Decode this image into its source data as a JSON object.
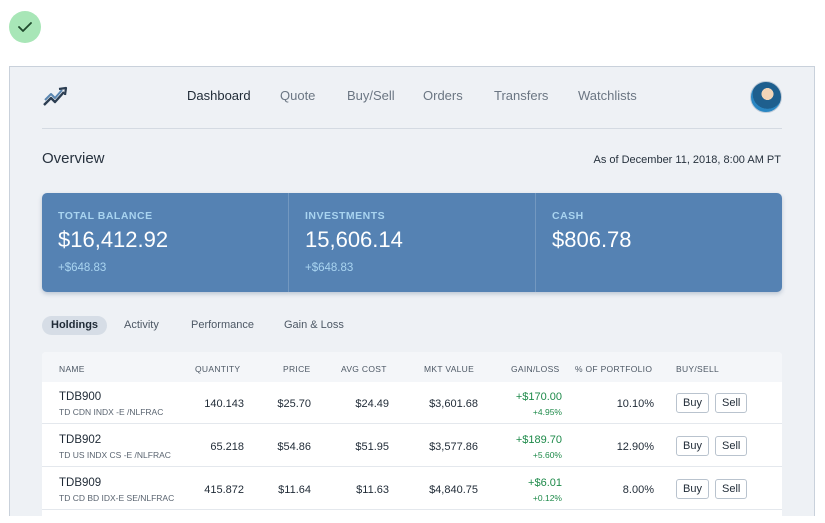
{
  "nav": {
    "items": [
      {
        "label": "Dashboard",
        "active": true
      },
      {
        "label": "Quote",
        "active": false
      },
      {
        "label": "Buy/Sell",
        "active": false
      },
      {
        "label": "Orders",
        "active": false
      },
      {
        "label": "Transfers",
        "active": false
      },
      {
        "label": "Watchlists",
        "active": false
      }
    ]
  },
  "overview": {
    "title": "Overview",
    "as_of": "As of December 11, 2018, 8:00 AM PT"
  },
  "balances": [
    {
      "label": "TOTAL BALANCE",
      "value": "$16,412.92",
      "change": "+$648.83"
    },
    {
      "label": "INVESTMENTS",
      "value": "15,606.14",
      "change": "+$648.83"
    },
    {
      "label": "CASH",
      "value": "$806.78",
      "change": ""
    }
  ],
  "tabs": [
    {
      "label": "Holdings",
      "active": true
    },
    {
      "label": "Activity",
      "active": false
    },
    {
      "label": "Performance",
      "active": false
    },
    {
      "label": "Gain & Loss",
      "active": false
    }
  ],
  "table": {
    "headers": [
      "NAME",
      "QUANTITY",
      "PRICE",
      "AVG COST",
      "MKT VALUE",
      "GAIN/LOSS",
      "% OF PORTFOLIO",
      "BUY/SELL"
    ],
    "buy_label": "Buy",
    "sell_label": "Sell",
    "rows": [
      {
        "symbol": "TDB900",
        "description": "TD CDN INDX -E /NLFRAC",
        "quantity": "140.143",
        "price": "$25.70",
        "avg_cost": "$24.49",
        "mkt_value": "$3,601.68",
        "gain": "+$170.00",
        "gain_pct": "+4.95%",
        "portfolio_pct": "10.10%"
      },
      {
        "symbol": "TDB902",
        "description": "TD US INDX CS -E /NLFRAC",
        "quantity": "65.218",
        "price": "$54.86",
        "avg_cost": "$51.95",
        "mkt_value": "$3,577.86",
        "gain": "+$189.70",
        "gain_pct": "+5.60%",
        "portfolio_pct": "12.90%"
      },
      {
        "symbol": "TDB909",
        "description": "TD CD BD IDX-E SE/NLFRAC",
        "quantity": "415.872",
        "price": "$11.64",
        "avg_cost": "$11.63",
        "mkt_value": "$4,840.75",
        "gain": "+$6.01",
        "gain_pct": "+0.12%",
        "portfolio_pct": "8.00%"
      }
    ]
  },
  "colors": {
    "accent_panel": "#5582b3",
    "gain_green": "#1e8a4a",
    "success_badge": "#a8e6b7"
  }
}
